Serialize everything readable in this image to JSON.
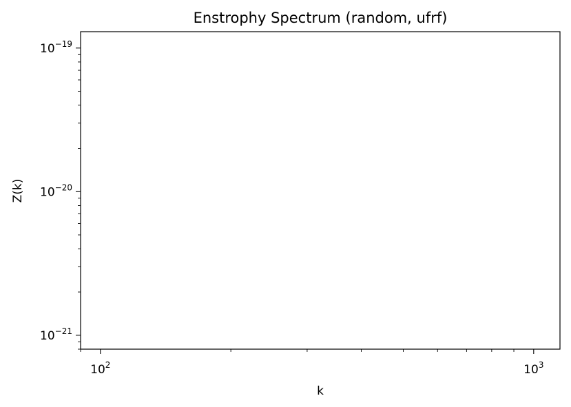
{
  "chart_data": {
    "type": "line",
    "title": "Enstrophy Spectrum (random, ufrf)",
    "xlabel": "k",
    "ylabel": "Z(k)",
    "xscale": "log",
    "yscale": "log",
    "xlim": [
      90,
      1150
    ],
    "ylim": [
      8e-22,
      1.3e-19
    ],
    "x_major_ticks": [
      {
        "value": 100,
        "base": "10",
        "exp": "2"
      },
      {
        "value": 1000,
        "base": "10",
        "exp": "3"
      }
    ],
    "y_major_ticks": [
      {
        "value": 1e-21,
        "base": "10",
        "exp": "−21"
      },
      {
        "value": 1e-20,
        "base": "10",
        "exp": "−20"
      },
      {
        "value": 1e-19,
        "base": "10",
        "exp": "−19"
      }
    ],
    "grid": false,
    "series": []
  }
}
